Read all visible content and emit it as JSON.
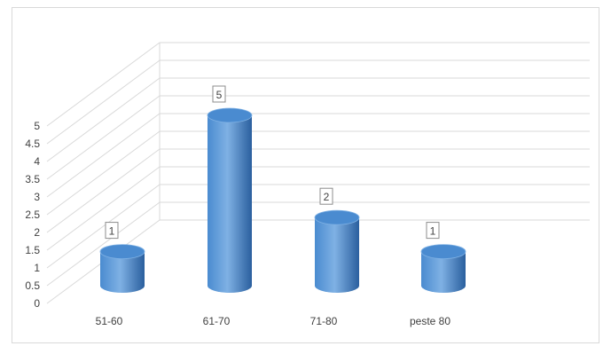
{
  "chart_data": {
    "type": "bar",
    "style": "3d-cylinder",
    "categories": [
      "51-60",
      "61-70",
      "71-80",
      "peste 80"
    ],
    "values": [
      1,
      5,
      2,
      1
    ],
    "data_labels": [
      "1",
      "5",
      "2",
      "1"
    ],
    "ylim": [
      0,
      5
    ],
    "yticks": [
      "0",
      "0.5",
      "1",
      "1.5",
      "2",
      "2.5",
      "3",
      "3.5",
      "4",
      "4.5",
      "5"
    ],
    "grid": true,
    "legend": "none",
    "title": "",
    "xlabel": "",
    "ylabel": "",
    "colors": {
      "bar_light": "#7fb1e4",
      "bar_mid": "#4a8bd0",
      "bar_dark": "#2a5f9e",
      "grid": "#d9d9d9",
      "frame": "#d9d9d9",
      "text": "#404040"
    }
  }
}
